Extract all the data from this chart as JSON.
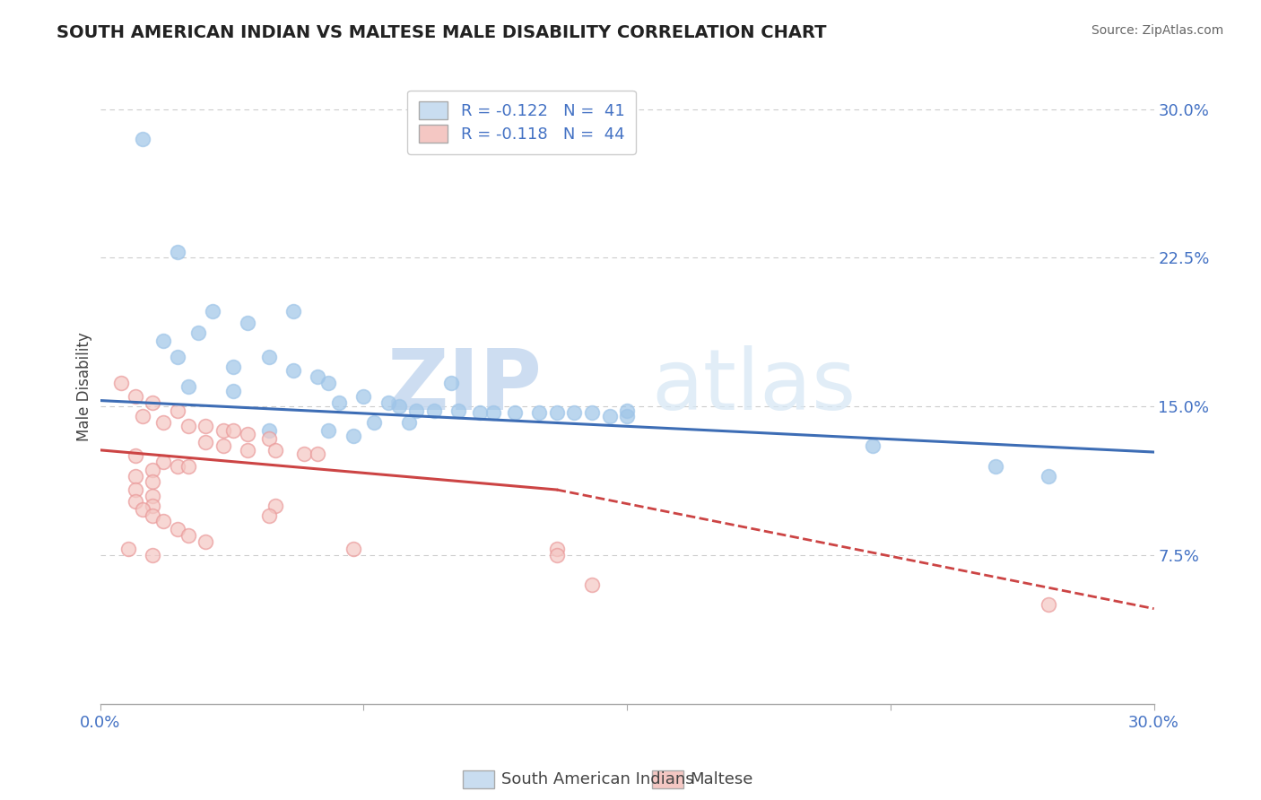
{
  "title": "SOUTH AMERICAN INDIAN VS MALTESE MALE DISABILITY CORRELATION CHART",
  "source_text": "Source: ZipAtlas.com",
  "ylabel": "Male Disability",
  "xlim": [
    0.0,
    0.3
  ],
  "ylim": [
    0.0,
    0.32
  ],
  "grid_color": "#cccccc",
  "background_color": "#ffffff",
  "watermark_zip": "ZIP",
  "watermark_atlas": "atlas",
  "legend_r1": "R = -0.122",
  "legend_n1": "N =  41",
  "legend_r2": "R = -0.118",
  "legend_n2": "N =  44",
  "blue_color": "#9fc5e8",
  "pink_color": "#ea9999",
  "blue_face": "#9fc5e8",
  "pink_face": "#f4c7c3",
  "blue_line_color": "#3d6db5",
  "pink_line_color": "#cc4444",
  "blue_line": [
    0.0,
    0.153,
    0.3,
    0.127
  ],
  "pink_line_solid": [
    0.0,
    0.128,
    0.13,
    0.108
  ],
  "pink_line_dash": [
    0.13,
    0.108,
    0.3,
    0.048
  ],
  "blue_scatter": [
    [
      0.012,
      0.285
    ],
    [
      0.022,
      0.228
    ],
    [
      0.032,
      0.198
    ],
    [
      0.055,
      0.198
    ],
    [
      0.042,
      0.192
    ],
    [
      0.028,
      0.187
    ],
    [
      0.018,
      0.183
    ],
    [
      0.022,
      0.175
    ],
    [
      0.048,
      0.175
    ],
    [
      0.038,
      0.17
    ],
    [
      0.055,
      0.168
    ],
    [
      0.062,
      0.165
    ],
    [
      0.065,
      0.162
    ],
    [
      0.1,
      0.162
    ],
    [
      0.025,
      0.16
    ],
    [
      0.038,
      0.158
    ],
    [
      0.075,
      0.155
    ],
    [
      0.068,
      0.152
    ],
    [
      0.082,
      0.152
    ],
    [
      0.085,
      0.15
    ],
    [
      0.09,
      0.148
    ],
    [
      0.095,
      0.148
    ],
    [
      0.102,
      0.148
    ],
    [
      0.108,
      0.147
    ],
    [
      0.112,
      0.147
    ],
    [
      0.118,
      0.147
    ],
    [
      0.125,
      0.147
    ],
    [
      0.13,
      0.147
    ],
    [
      0.135,
      0.147
    ],
    [
      0.14,
      0.147
    ],
    [
      0.145,
      0.145
    ],
    [
      0.15,
      0.145
    ],
    [
      0.078,
      0.142
    ],
    [
      0.088,
      0.142
    ],
    [
      0.048,
      0.138
    ],
    [
      0.065,
      0.138
    ],
    [
      0.072,
      0.135
    ],
    [
      0.22,
      0.13
    ],
    [
      0.255,
      0.12
    ],
    [
      0.27,
      0.115
    ],
    [
      0.15,
      0.148
    ]
  ],
  "pink_scatter": [
    [
      0.006,
      0.162
    ],
    [
      0.01,
      0.155
    ],
    [
      0.015,
      0.152
    ],
    [
      0.022,
      0.148
    ],
    [
      0.012,
      0.145
    ],
    [
      0.018,
      0.142
    ],
    [
      0.025,
      0.14
    ],
    [
      0.03,
      0.14
    ],
    [
      0.035,
      0.138
    ],
    [
      0.038,
      0.138
    ],
    [
      0.042,
      0.136
    ],
    [
      0.048,
      0.134
    ],
    [
      0.03,
      0.132
    ],
    [
      0.035,
      0.13
    ],
    [
      0.042,
      0.128
    ],
    [
      0.05,
      0.128
    ],
    [
      0.058,
      0.126
    ],
    [
      0.062,
      0.126
    ],
    [
      0.01,
      0.125
    ],
    [
      0.018,
      0.122
    ],
    [
      0.022,
      0.12
    ],
    [
      0.025,
      0.12
    ],
    [
      0.015,
      0.118
    ],
    [
      0.01,
      0.115
    ],
    [
      0.015,
      0.112
    ],
    [
      0.01,
      0.108
    ],
    [
      0.015,
      0.105
    ],
    [
      0.01,
      0.102
    ],
    [
      0.015,
      0.1
    ],
    [
      0.012,
      0.098
    ],
    [
      0.015,
      0.095
    ],
    [
      0.018,
      0.092
    ],
    [
      0.022,
      0.088
    ],
    [
      0.025,
      0.085
    ],
    [
      0.03,
      0.082
    ],
    [
      0.008,
      0.078
    ],
    [
      0.015,
      0.075
    ],
    [
      0.072,
      0.078
    ],
    [
      0.13,
      0.078
    ],
    [
      0.14,
      0.06
    ],
    [
      0.27,
      0.05
    ],
    [
      0.13,
      0.075
    ],
    [
      0.05,
      0.1
    ],
    [
      0.048,
      0.095
    ]
  ]
}
